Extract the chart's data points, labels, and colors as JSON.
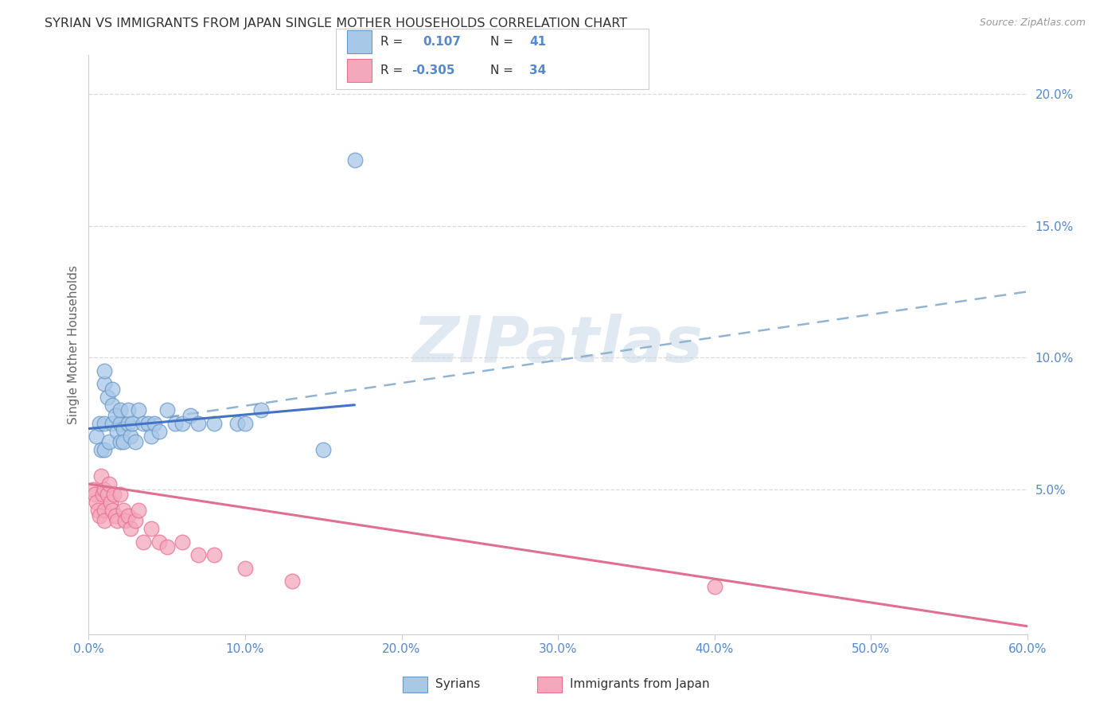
{
  "title": "SYRIAN VS IMMIGRANTS FROM JAPAN SINGLE MOTHER HOUSEHOLDS CORRELATION CHART",
  "source": "Source: ZipAtlas.com",
  "ylabel": "Single Mother Households",
  "xlim": [
    0.0,
    0.6
  ],
  "ylim": [
    -0.005,
    0.215
  ],
  "xticks": [
    0.0,
    0.1,
    0.2,
    0.3,
    0.4,
    0.5,
    0.6
  ],
  "yticks": [
    0.05,
    0.1,
    0.15,
    0.2
  ],
  "ytick_labels": [
    "5.0%",
    "10.0%",
    "15.0%",
    "20.0%"
  ],
  "xtick_labels": [
    "0.0%",
    "10.0%",
    "20.0%",
    "30.0%",
    "40.0%",
    "50.0%",
    "60.0%"
  ],
  "blue_color": "#A8C8E8",
  "pink_color": "#F4A8BC",
  "blue_edge_color": "#6898C8",
  "pink_edge_color": "#E87090",
  "blue_line_color": "#4472C4",
  "pink_line_color": "#E07090",
  "dashed_line_color": "#92B4D0",
  "tick_color": "#5588CC",
  "axis_color": "#666666",
  "grid_color": "#D0D0D0",
  "background_color": "#FFFFFF",
  "watermark_color": "#C8D8E8",
  "label_syrians": "Syrians",
  "label_japan": "Immigrants from Japan",
  "blue_scatter_x": [
    0.005,
    0.007,
    0.008,
    0.01,
    0.01,
    0.01,
    0.01,
    0.012,
    0.013,
    0.015,
    0.015,
    0.015,
    0.017,
    0.018,
    0.02,
    0.02,
    0.02,
    0.022,
    0.022,
    0.025,
    0.025,
    0.027,
    0.028,
    0.03,
    0.032,
    0.035,
    0.038,
    0.04,
    0.042,
    0.045,
    0.05,
    0.055,
    0.06,
    0.065,
    0.07,
    0.08,
    0.095,
    0.1,
    0.11,
    0.15,
    0.17
  ],
  "blue_scatter_y": [
    0.07,
    0.075,
    0.065,
    0.09,
    0.095,
    0.075,
    0.065,
    0.085,
    0.068,
    0.088,
    0.082,
    0.075,
    0.078,
    0.072,
    0.068,
    0.075,
    0.08,
    0.073,
    0.068,
    0.075,
    0.08,
    0.07,
    0.075,
    0.068,
    0.08,
    0.075,
    0.075,
    0.07,
    0.075,
    0.072,
    0.08,
    0.075,
    0.075,
    0.078,
    0.075,
    0.075,
    0.075,
    0.075,
    0.08,
    0.065,
    0.175
  ],
  "pink_scatter_x": [
    0.003,
    0.004,
    0.005,
    0.006,
    0.007,
    0.008,
    0.009,
    0.01,
    0.01,
    0.01,
    0.012,
    0.013,
    0.014,
    0.015,
    0.016,
    0.017,
    0.018,
    0.02,
    0.022,
    0.023,
    0.025,
    0.027,
    0.03,
    0.032,
    0.035,
    0.04,
    0.045,
    0.05,
    0.06,
    0.07,
    0.08,
    0.1,
    0.13,
    0.4
  ],
  "pink_scatter_y": [
    0.05,
    0.048,
    0.045,
    0.042,
    0.04,
    0.055,
    0.048,
    0.05,
    0.042,
    0.038,
    0.048,
    0.052,
    0.045,
    0.042,
    0.048,
    0.04,
    0.038,
    0.048,
    0.042,
    0.038,
    0.04,
    0.035,
    0.038,
    0.042,
    0.03,
    0.035,
    0.03,
    0.028,
    0.03,
    0.025,
    0.025,
    0.02,
    0.015,
    0.013
  ],
  "blue_line_x_start": 0.0,
  "blue_line_x_end": 0.17,
  "blue_line_y_start": 0.073,
  "blue_line_y_end": 0.082,
  "dashed_line_x_start": 0.0,
  "dashed_line_x_end": 0.6,
  "dashed_line_y_start": 0.073,
  "dashed_line_y_end": 0.125,
  "pink_line_x_start": 0.0,
  "pink_line_x_end": 0.6,
  "pink_line_y_start": 0.052,
  "pink_line_y_end": -0.002
}
